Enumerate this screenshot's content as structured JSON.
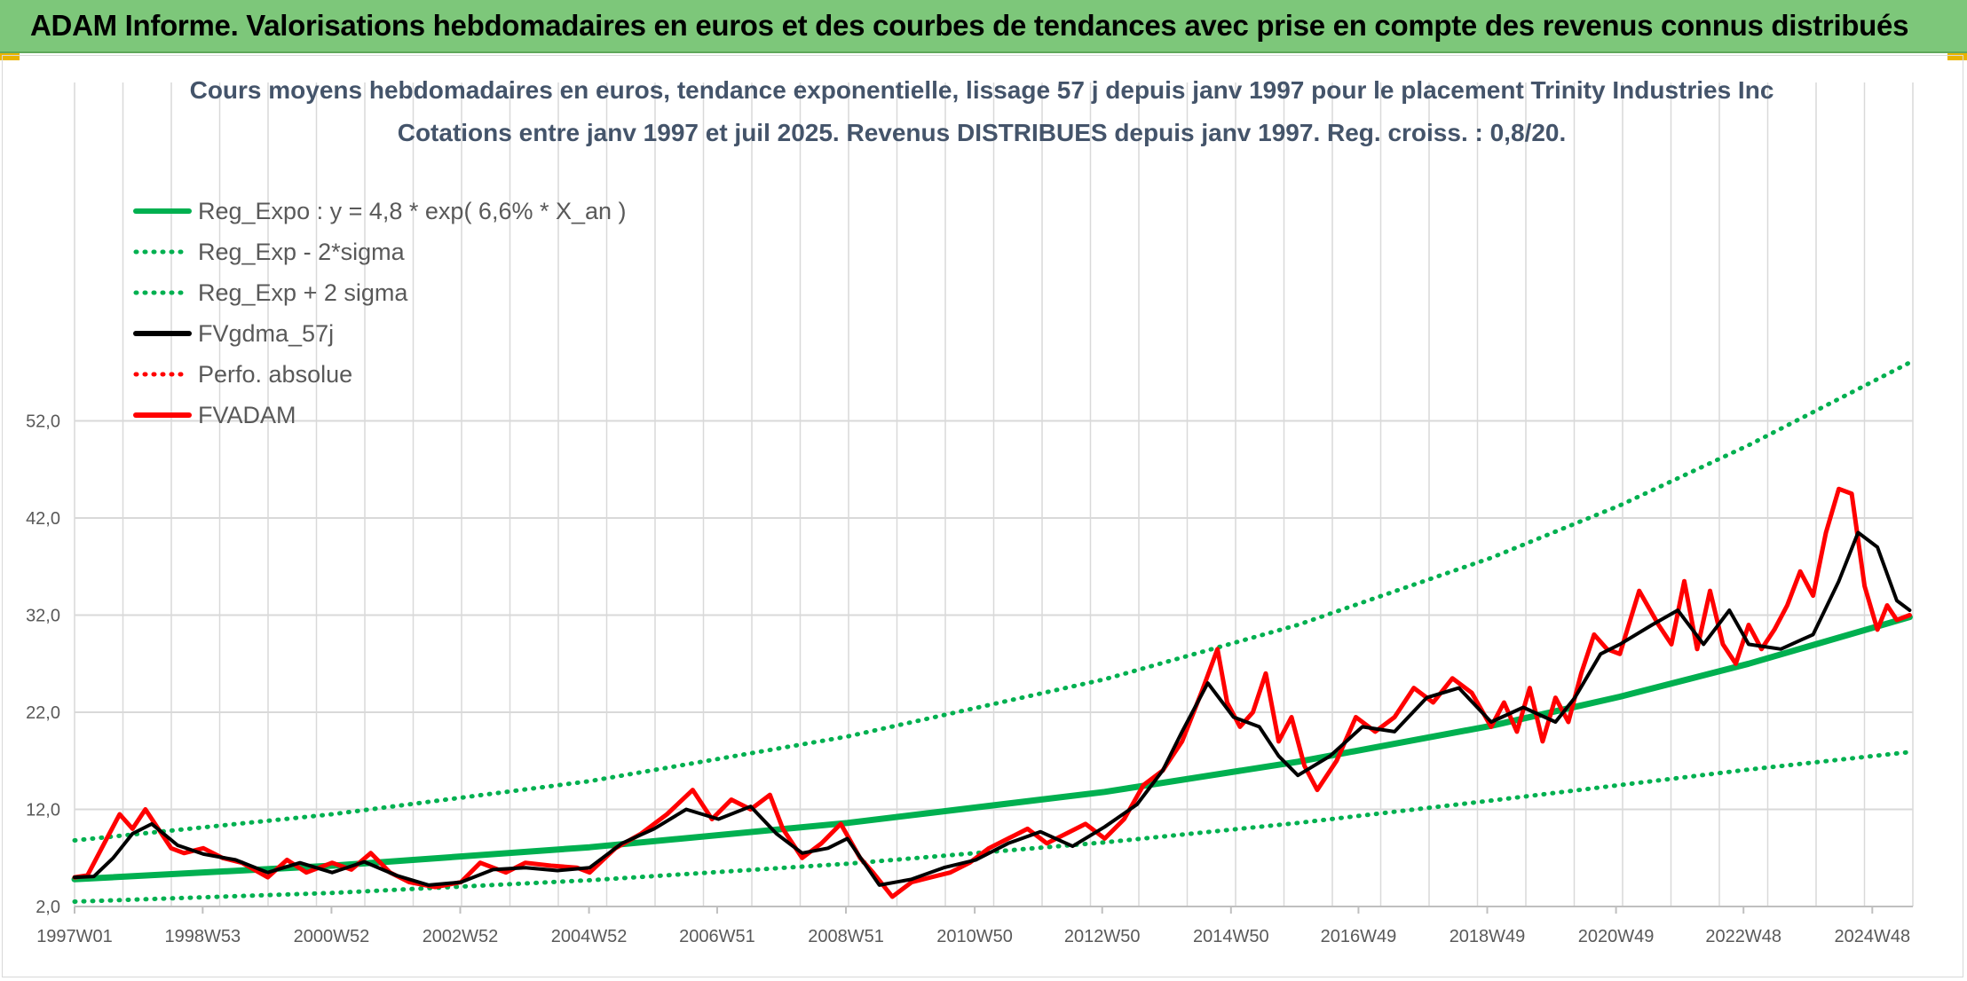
{
  "banner": {
    "title": "ADAM Informe. Valorisations hebdomadaires en euros et des courbes de tendances avec prise en compte des revenus connus distribués"
  },
  "colors": {
    "banner": "#7dc77a",
    "green": "#00b050",
    "black": "#000000",
    "red": "#ff0000",
    "title": "#44546a",
    "grid": "#d9d9d9"
  },
  "chart_data": {
    "type": "line",
    "title_line1": "Cours moyens hebdomadaires en euros, tendance exponentielle, lissage 57 j depuis janv 1997 pour le placement Trinity Industries Inc",
    "title_line2": "Cotations entre janv 1997 et juil 2025. Revenus DISTRIBUES depuis janv 1997. Reg. croiss. : 0,8/20.",
    "ylim": [
      2,
      60
    ],
    "yticks": [
      2,
      12,
      22,
      32,
      42,
      52
    ],
    "yticklabels": [
      "2,0",
      "12,0",
      "22,0",
      "32,0",
      "42,0",
      "52,0"
    ],
    "xlim": [
      1997.0,
      2025.55
    ],
    "xticks": [
      1997.0,
      1998.99,
      2000.99,
      2002.99,
      2004.99,
      2006.98,
      2008.98,
      2010.98,
      2012.96,
      2014.96,
      2016.94,
      2018.94,
      2020.94,
      2022.92,
      2024.92
    ],
    "xticklabels": [
      "1997W01",
      "1998W53",
      "2000W52",
      "2002W52",
      "2004W52",
      "2006W51",
      "2008W51",
      "2010W50",
      "2012W50",
      "2014W50",
      "2016W49",
      "2018W49",
      "2020W49",
      "2022W48",
      "2024W48"
    ],
    "grid": true,
    "legend_position": "top-left",
    "legend": [
      {
        "label": "Reg_Expo : y = 4,8 * exp( 6,6% *  X_an )",
        "color": "#00b050",
        "style": "solid"
      },
      {
        "label": "Reg_Exp - 2*sigma",
        "color": "#00b050",
        "style": "dotted"
      },
      {
        "label": "Reg_Exp + 2 sigma",
        "color": "#00b050",
        "style": "dotted"
      },
      {
        "label": "FVgdma_57j",
        "color": "#000000",
        "style": "solid"
      },
      {
        "label": "Perfo. absolue",
        "color": "#ff0000",
        "style": "dotted"
      },
      {
        "label": "FVADAM",
        "color": "#ff0000",
        "style": "solid"
      }
    ],
    "series": [
      {
        "name": "Reg_Expo : y = 4,8 * exp( 6,6% *  X_an )",
        "x": [
          1997.0,
          2001.0,
          2005.0,
          2009.0,
          2013.0,
          2016.0,
          2019.0,
          2021.0,
          2023.0,
          2025.5
        ],
        "values": [
          4.8,
          6.2,
          8.1,
          10.6,
          13.8,
          16.9,
          20.6,
          23.6,
          27.0,
          31.8
        ]
      },
      {
        "name": "Reg_Exp - 2*sigma",
        "x": [
          1997.0,
          2001.0,
          2005.0,
          2009.0,
          2013.0,
          2016.0,
          2019.0,
          2021.0,
          2023.0,
          2025.5
        ],
        "values": [
          2.5,
          3.4,
          4.7,
          6.4,
          8.6,
          10.6,
          12.9,
          14.5,
          16.1,
          17.9
        ]
      },
      {
        "name": "Reg_Exp + 2 sigma",
        "x": [
          1997.0,
          2001.0,
          2005.0,
          2009.0,
          2013.0,
          2016.0,
          2019.0,
          2021.0,
          2023.0,
          2025.5
        ],
        "values": [
          8.8,
          11.5,
          14.9,
          19.5,
          25.4,
          31.0,
          37.9,
          43.3,
          49.5,
          58.0
        ]
      },
      {
        "name": "FVgdma_57j",
        "x": [
          1997.0,
          1997.3,
          1997.6,
          1997.9,
          1998.2,
          1998.6,
          1999.0,
          1999.5,
          2000.0,
          2000.5,
          2001.0,
          2001.5,
          2002.0,
          2002.5,
          2003.0,
          2003.5,
          2004.0,
          2004.5,
          2005.0,
          2005.5,
          2006.0,
          2006.5,
          2007.0,
          2007.5,
          2007.9,
          2008.3,
          2008.7,
          2009.0,
          2009.5,
          2010.0,
          2010.5,
          2011.0,
          2011.5,
          2012.0,
          2012.5,
          2013.0,
          2013.5,
          2013.9,
          2014.2,
          2014.6,
          2015.0,
          2015.4,
          2015.7,
          2016.0,
          2016.5,
          2017.0,
          2017.5,
          2018.0,
          2018.5,
          2019.0,
          2019.5,
          2020.0,
          2020.3,
          2020.7,
          2021.0,
          2021.5,
          2021.9,
          2022.3,
          2022.7,
          2023.0,
          2023.5,
          2024.0,
          2024.4,
          2024.7,
          2025.0,
          2025.3,
          2025.5
        ],
        "values": [
          5.0,
          5.1,
          7.0,
          9.5,
          10.5,
          8.3,
          7.4,
          6.8,
          5.5,
          6.5,
          5.5,
          6.6,
          5.2,
          4.2,
          4.5,
          5.8,
          6.0,
          5.7,
          6.0,
          8.5,
          10.0,
          12.0,
          11.0,
          12.3,
          9.5,
          7.5,
          8.0,
          9.0,
          4.2,
          4.8,
          6.0,
          6.8,
          8.5,
          9.7,
          8.2,
          10.2,
          12.5,
          16.0,
          20.0,
          25.0,
          21.5,
          20.5,
          17.5,
          15.5,
          17.5,
          20.5,
          20.0,
          23.5,
          24.5,
          21.0,
          22.5,
          21.0,
          23.5,
          28.0,
          29.0,
          31.0,
          32.5,
          29.0,
          32.5,
          29.0,
          28.5,
          30.0,
          35.5,
          40.5,
          39.0,
          33.5,
          32.5
        ]
      },
      {
        "name": "FVADAM",
        "x": [
          1997.0,
          1997.2,
          1997.5,
          1997.7,
          1997.9,
          1998.1,
          1998.3,
          1998.5,
          1998.7,
          1999.0,
          1999.3,
          1999.6,
          2000.0,
          2000.3,
          2000.6,
          2001.0,
          2001.3,
          2001.6,
          2001.9,
          2002.2,
          2002.6,
          2003.0,
          2003.3,
          2003.7,
          2004.0,
          2004.4,
          2004.8,
          2005.0,
          2005.4,
          2005.8,
          2006.2,
          2006.6,
          2006.9,
          2007.2,
          2007.5,
          2007.8,
          2008.0,
          2008.3,
          2008.6,
          2008.9,
          2009.2,
          2009.4,
          2009.7,
          2010.0,
          2010.3,
          2010.6,
          2010.9,
          2011.2,
          2011.5,
          2011.8,
          2012.1,
          2012.4,
          2012.7,
          2013.0,
          2013.3,
          2013.6,
          2013.9,
          2014.2,
          2014.5,
          2014.75,
          2014.9,
          2015.1,
          2015.3,
          2015.5,
          2015.7,
          2015.9,
          2016.1,
          2016.3,
          2016.6,
          2016.9,
          2017.2,
          2017.5,
          2017.8,
          2018.1,
          2018.4,
          2018.7,
          2019.0,
          2019.2,
          2019.4,
          2019.6,
          2019.8,
          2020.0,
          2020.2,
          2020.4,
          2020.6,
          2020.8,
          2021.0,
          2021.3,
          2021.6,
          2021.8,
          2022.0,
          2022.2,
          2022.4,
          2022.6,
          2022.8,
          2023.0,
          2023.2,
          2023.4,
          2023.6,
          2023.8,
          2024.0,
          2024.2,
          2024.4,
          2024.6,
          2024.8,
          2025.0,
          2025.15,
          2025.3,
          2025.5
        ],
        "values": [
          5.0,
          5.2,
          9.0,
          11.5,
          10.0,
          12.0,
          10.0,
          8.0,
          7.5,
          8.0,
          7.0,
          6.5,
          5.0,
          6.8,
          5.5,
          6.5,
          5.8,
          7.5,
          5.5,
          4.5,
          4.0,
          4.5,
          6.5,
          5.5,
          6.5,
          6.2,
          6.0,
          5.5,
          8.0,
          9.5,
          11.5,
          14.0,
          11.0,
          13.0,
          12.0,
          13.5,
          10.0,
          7.0,
          8.5,
          10.5,
          7.0,
          5.5,
          3.0,
          4.5,
          5.0,
          5.5,
          6.5,
          8.0,
          9.0,
          10.0,
          8.5,
          9.5,
          10.5,
          9.0,
          11.0,
          14.5,
          16.0,
          19.0,
          24.0,
          28.5,
          23.0,
          20.5,
          22.0,
          26.0,
          19.0,
          21.5,
          16.5,
          14.0,
          17.0,
          21.5,
          20.0,
          21.5,
          24.5,
          23.0,
          25.5,
          24.0,
          20.5,
          23.0,
          20.0,
          24.5,
          19.0,
          23.5,
          21.0,
          26.0,
          30.0,
          28.5,
          28.0,
          34.5,
          31.0,
          29.0,
          35.5,
          28.5,
          34.5,
          29.0,
          27.0,
          31.0,
          28.5,
          30.5,
          33.0,
          36.5,
          34.0,
          40.5,
          45.0,
          44.5,
          35.0,
          30.5,
          33.0,
          31.5,
          32.0
        ]
      }
    ]
  }
}
